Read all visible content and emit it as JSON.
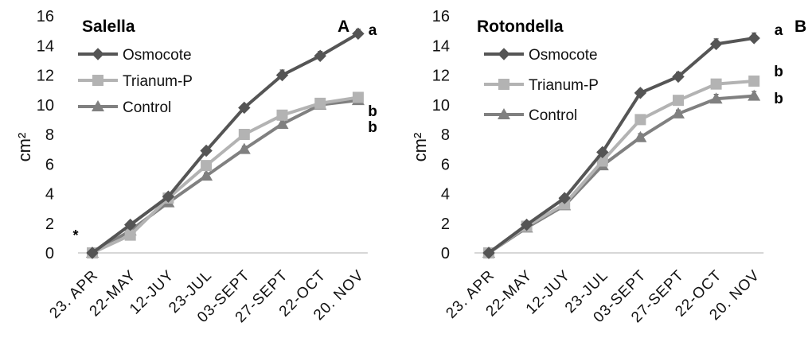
{
  "chart_data": [
    {
      "type": "line",
      "panel_letter": "A",
      "title": "Salella",
      "ylabel": "cm²",
      "ylim": [
        0,
        16
      ],
      "yticks": [
        0,
        2,
        4,
        6,
        8,
        10,
        12,
        14,
        16
      ],
      "categories": [
        "23. APR",
        "22-MAY",
        "12-JUY",
        "23-JUL",
        "03-SEPT",
        "27-SEPT",
        "22-OCT",
        "20. NOV"
      ],
      "grid": false,
      "legend_position": "top-left",
      "annotations": [
        {
          "text": "*",
          "near": "22-MAY"
        },
        {
          "text": "a",
          "series": "Osmocote"
        },
        {
          "text": "b",
          "series": "Trianum-P"
        },
        {
          "text": "b",
          "series": "Control"
        }
      ],
      "series": [
        {
          "name": "Osmocote",
          "color": "#555555",
          "marker": "diamond",
          "values": [
            0,
            1.9,
            3.8,
            6.9,
            9.8,
            12.0,
            13.3,
            14.8
          ],
          "errors": [
            0,
            0.1,
            0.15,
            0.2,
            0.2,
            0.35,
            0.3,
            0.3
          ]
        },
        {
          "name": "Trianum-P",
          "color": "#b3b3b3",
          "marker": "square",
          "values": [
            0,
            1.2,
            3.7,
            5.9,
            8.0,
            9.3,
            10.1,
            10.5
          ],
          "errors": [
            0,
            0.1,
            0.15,
            0.2,
            0.2,
            0.25,
            0.25,
            0.3
          ]
        },
        {
          "name": "Control",
          "color": "#808080",
          "marker": "triangle",
          "values": [
            0,
            1.5,
            3.4,
            5.2,
            7.0,
            8.7,
            10.0,
            10.3
          ],
          "errors": [
            0,
            0.1,
            0.15,
            0.2,
            0.2,
            0.25,
            0.25,
            0.25
          ]
        }
      ]
    },
    {
      "type": "line",
      "panel_letter": "B",
      "title": "Rotondella",
      "ylabel": "cm²",
      "ylim": [
        0,
        16
      ],
      "yticks": [
        0,
        2,
        4,
        6,
        8,
        10,
        12,
        14,
        16
      ],
      "categories": [
        "23. APR",
        "22-MAY",
        "12-JUY",
        "23-JUL",
        "03-SEPT",
        "27-SEPT",
        "22-OCT",
        "20. NOV"
      ],
      "grid": false,
      "legend_position": "top-left",
      "annotations": [
        {
          "text": "a",
          "series": "Osmocote"
        },
        {
          "text": "b",
          "series": "Trianum-P"
        },
        {
          "text": "b",
          "series": "Control"
        }
      ],
      "series": [
        {
          "name": "Osmocote",
          "color": "#555555",
          "marker": "diamond",
          "values": [
            0,
            1.9,
            3.7,
            6.8,
            10.8,
            11.9,
            14.1,
            14.5
          ],
          "errors": [
            0,
            0.1,
            0.15,
            0.2,
            0.25,
            0.3,
            0.35,
            0.35
          ]
        },
        {
          "name": "Trianum-P",
          "color": "#b3b3b3",
          "marker": "square",
          "values": [
            0,
            1.8,
            3.3,
            6.2,
            9.0,
            10.3,
            11.4,
            11.6
          ],
          "errors": [
            0,
            0.1,
            0.15,
            0.2,
            0.2,
            0.25,
            0.25,
            0.3
          ]
        },
        {
          "name": "Control",
          "color": "#808080",
          "marker": "triangle",
          "values": [
            0,
            1.7,
            3.2,
            5.9,
            7.8,
            9.4,
            10.4,
            10.6
          ],
          "errors": [
            0,
            0.1,
            0.15,
            0.2,
            0.25,
            0.25,
            0.3,
            0.3
          ]
        }
      ]
    }
  ]
}
